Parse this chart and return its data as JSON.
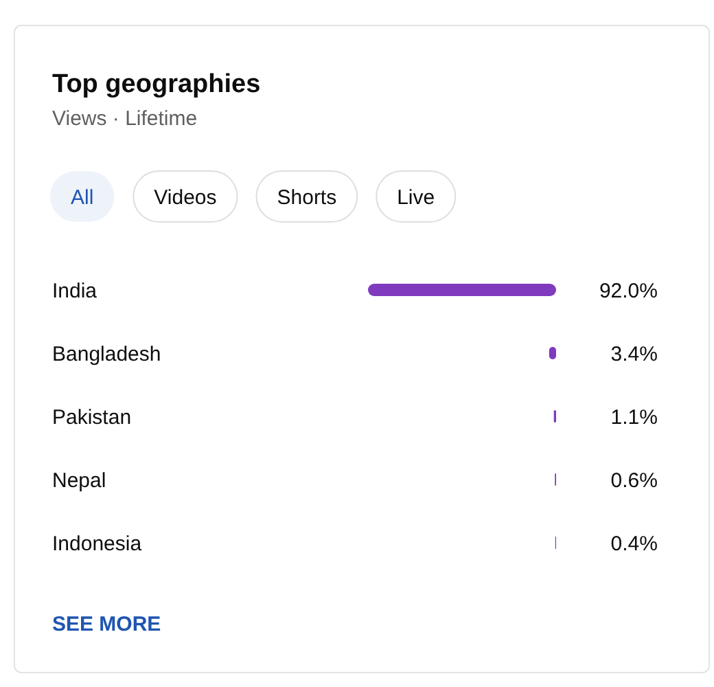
{
  "chart_data": {
    "type": "bar",
    "orientation": "horizontal",
    "title": "Top geographies",
    "subtitle": "Views · Lifetime",
    "categories": [
      "India",
      "Bangladesh",
      "Pakistan",
      "Nepal",
      "Indonesia"
    ],
    "values": [
      92.0,
      3.4,
      1.1,
      0.6,
      0.4
    ],
    "color": "#7f3abd",
    "value_labels": [
      "92.0%",
      "3.4%",
      "1.1%",
      "0.6%",
      "0.4%"
    ],
    "annotations": [
      "All",
      "Videos",
      "Shorts",
      "Live",
      "SEE MORE"
    ]
  }
}
